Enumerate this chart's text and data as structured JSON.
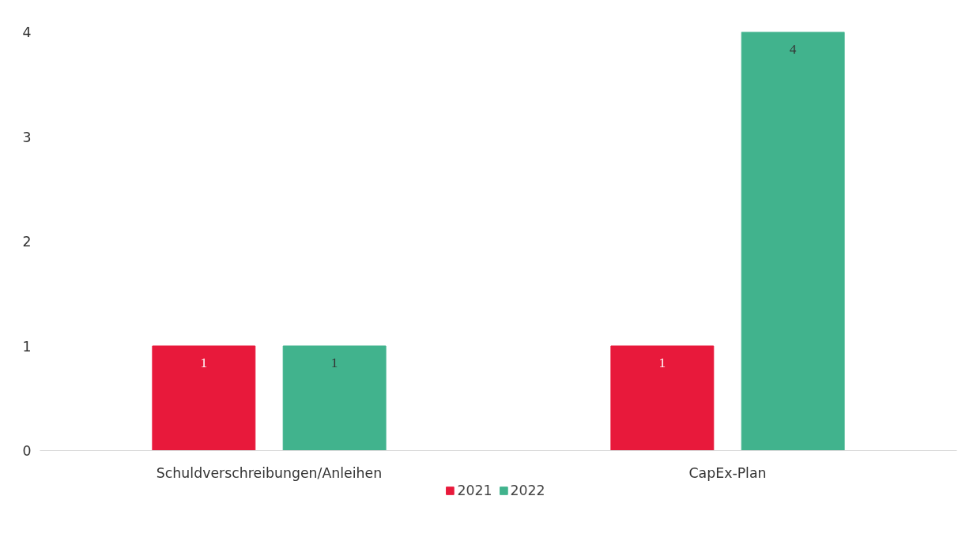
{
  "chart_data": {
    "type": "bar",
    "categories": [
      "Schuldverschreibungen/Anleihen",
      "CapEx-Plan"
    ],
    "series": [
      {
        "name": "2021",
        "color": "#e8193b",
        "values": [
          1,
          1
        ]
      },
      {
        "name": "2022",
        "color": "#41b38d",
        "values": [
          1,
          4
        ]
      }
    ],
    "ylim": [
      0,
      4
    ],
    "yticks": [
      0,
      1,
      2,
      3,
      4
    ],
    "grid": false,
    "legend": "bottom",
    "data_labels": true
  }
}
